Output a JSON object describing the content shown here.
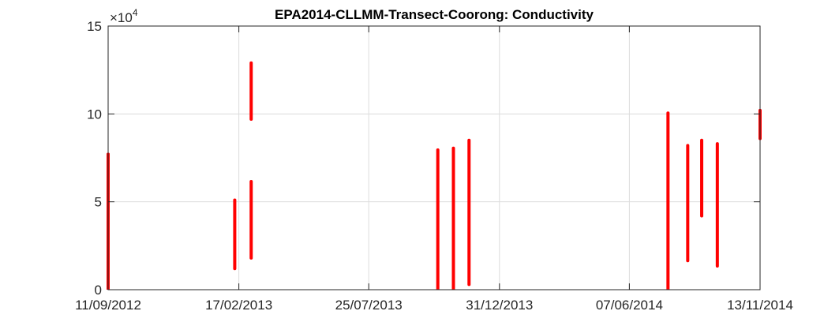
{
  "chart_data": {
    "type": "scatter",
    "title": "EPA2014-CLLMM-Transect-Coorong: Conductivity",
    "xlabel": "",
    "ylabel": "",
    "x_axis": "date",
    "xlim": [
      "11/09/2012",
      "13/11/2014"
    ],
    "ylim": [
      0,
      150000
    ],
    "y_exponent_label": {
      "base": "×10",
      "exponent": "4"
    },
    "x_ticks": [
      "11/09/2012",
      "17/02/2013",
      "25/07/2013",
      "31/12/2013",
      "07/06/2014",
      "13/11/2014"
    ],
    "y_ticks": [
      {
        "value": 0,
        "label": "0"
      },
      {
        "value": 50000,
        "label": "5"
      },
      {
        "value": 100000,
        "label": "10"
      },
      {
        "value": 150000,
        "label": "15"
      }
    ],
    "grid": true,
    "marker_color": "#ff0000",
    "series": [
      {
        "points": [
          {
            "x": "11/09/2012",
            "y_min": 0,
            "y_max": 77000
          },
          {
            "x": "11/09/2012",
            "y_min": 20000,
            "y_max": 77000
          },
          {
            "x": "12/02/2013",
            "y_min": 12000,
            "y_max": 51000
          },
          {
            "x": "04/03/2013",
            "y_min": 18000,
            "y_max": 61500
          },
          {
            "x": "04/03/2013",
            "y_min": 97000,
            "y_max": 129000
          },
          {
            "x": "17/10/2013",
            "y_min": 0,
            "y_max": 79500
          },
          {
            "x": "05/11/2013",
            "y_min": 0,
            "y_max": 80500
          },
          {
            "x": "24/11/2013",
            "y_min": 3000,
            "y_max": 85000
          },
          {
            "x": "24/07/2014",
            "y_min": 0,
            "y_max": 100500
          },
          {
            "x": "17/08/2014",
            "y_min": 16500,
            "y_max": 82000
          },
          {
            "x": "03/09/2014",
            "y_min": 42000,
            "y_max": 85000
          },
          {
            "x": "22/09/2014",
            "y_min": 13500,
            "y_max": 83000
          },
          {
            "x": "13/11/2014",
            "y_min": 86000,
            "y_max": 102000
          }
        ]
      }
    ]
  }
}
